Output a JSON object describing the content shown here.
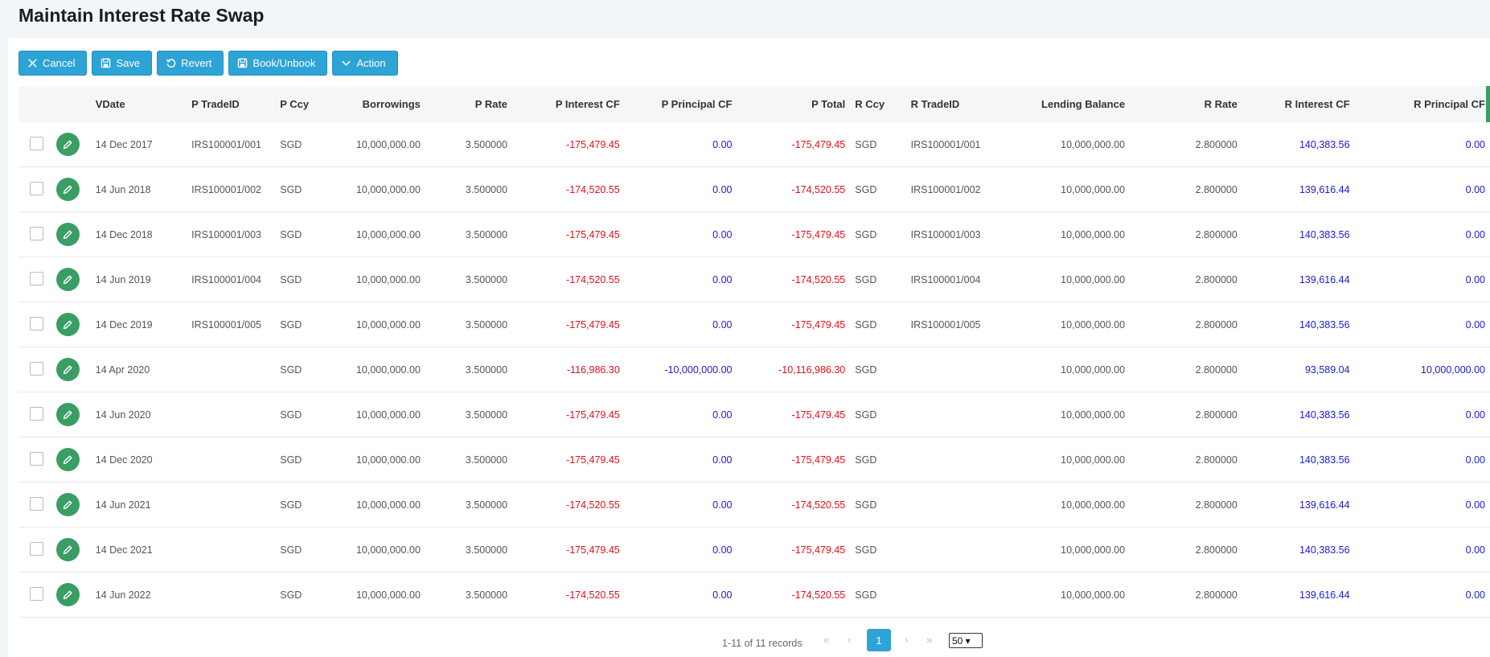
{
  "page": {
    "title": "Maintain Interest Rate Swap"
  },
  "toolbar": {
    "cancel": "Cancel",
    "save": "Save",
    "revert": "Revert",
    "book": "Book/Unbook",
    "action": "Action"
  },
  "columns": {
    "vdate": "VDate",
    "p_tradeid": "P TradeID",
    "p_ccy": "P Ccy",
    "borrowings": "Borrowings",
    "p_rate": "P Rate",
    "p_interest": "P Interest CF",
    "p_principal": "P Principal CF",
    "p_total": "P Total",
    "r_ccy": "R Ccy",
    "r_tradeid": "R TradeID",
    "lending": "Lending Balance",
    "r_rate": "R Rate",
    "r_interest": "R Interest CF",
    "r_principal": "R Principal CF"
  },
  "rows": [
    {
      "vdate": "14 Dec 2017",
      "p_tradeid": "IRS100001/001",
      "p_ccy": "SGD",
      "borrowings": "10,000,000.00",
      "p_rate": "3.500000",
      "p_interest": "-175,479.45",
      "p_principal": "0.00",
      "p_total": "-175,479.45",
      "r_ccy": "SGD",
      "r_tradeid": "IRS100001/001",
      "lending": "10,000,000.00",
      "r_rate": "2.800000",
      "r_interest": "140,383.56",
      "r_principal": "0.00"
    },
    {
      "vdate": "14 Jun 2018",
      "p_tradeid": "IRS100001/002",
      "p_ccy": "SGD",
      "borrowings": "10,000,000.00",
      "p_rate": "3.500000",
      "p_interest": "-174,520.55",
      "p_principal": "0.00",
      "p_total": "-174,520.55",
      "r_ccy": "SGD",
      "r_tradeid": "IRS100001/002",
      "lending": "10,000,000.00",
      "r_rate": "2.800000",
      "r_interest": "139,616.44",
      "r_principal": "0.00"
    },
    {
      "vdate": "14 Dec 2018",
      "p_tradeid": "IRS100001/003",
      "p_ccy": "SGD",
      "borrowings": "10,000,000.00",
      "p_rate": "3.500000",
      "p_interest": "-175,479.45",
      "p_principal": "0.00",
      "p_total": "-175,479.45",
      "r_ccy": "SGD",
      "r_tradeid": "IRS100001/003",
      "lending": "10,000,000.00",
      "r_rate": "2.800000",
      "r_interest": "140,383.56",
      "r_principal": "0.00"
    },
    {
      "vdate": "14 Jun 2019",
      "p_tradeid": "IRS100001/004",
      "p_ccy": "SGD",
      "borrowings": "10,000,000.00",
      "p_rate": "3.500000",
      "p_interest": "-174,520.55",
      "p_principal": "0.00",
      "p_total": "-174,520.55",
      "r_ccy": "SGD",
      "r_tradeid": "IRS100001/004",
      "lending": "10,000,000.00",
      "r_rate": "2.800000",
      "r_interest": "139,616.44",
      "r_principal": "0.00"
    },
    {
      "vdate": "14 Dec 2019",
      "p_tradeid": "IRS100001/005",
      "p_ccy": "SGD",
      "borrowings": "10,000,000.00",
      "p_rate": "3.500000",
      "p_interest": "-175,479.45",
      "p_principal": "0.00",
      "p_total": "-175,479.45",
      "r_ccy": "SGD",
      "r_tradeid": "IRS100001/005",
      "lending": "10,000,000.00",
      "r_rate": "2.800000",
      "r_interest": "140,383.56",
      "r_principal": "0.00"
    },
    {
      "vdate": "14 Apr 2020",
      "p_tradeid": "",
      "p_ccy": "SGD",
      "borrowings": "10,000,000.00",
      "p_rate": "3.500000",
      "p_interest": "-116,986.30",
      "p_principal": "-10,000,000.00",
      "p_total": "-10,116,986.30",
      "r_ccy": "SGD",
      "r_tradeid": "",
      "lending": "10,000,000.00",
      "r_rate": "2.800000",
      "r_interest": "93,589.04",
      "r_principal": "10,000,000.00"
    },
    {
      "vdate": "14 Jun 2020",
      "p_tradeid": "",
      "p_ccy": "SGD",
      "borrowings": "10,000,000.00",
      "p_rate": "3.500000",
      "p_interest": "-175,479.45",
      "p_principal": "0.00",
      "p_total": "-175,479.45",
      "r_ccy": "SGD",
      "r_tradeid": "",
      "lending": "10,000,000.00",
      "r_rate": "2.800000",
      "r_interest": "140,383.56",
      "r_principal": "0.00"
    },
    {
      "vdate": "14 Dec 2020",
      "p_tradeid": "",
      "p_ccy": "SGD",
      "borrowings": "10,000,000.00",
      "p_rate": "3.500000",
      "p_interest": "-175,479.45",
      "p_principal": "0.00",
      "p_total": "-175,479.45",
      "r_ccy": "SGD",
      "r_tradeid": "",
      "lending": "10,000,000.00",
      "r_rate": "2.800000",
      "r_interest": "140,383.56",
      "r_principal": "0.00"
    },
    {
      "vdate": "14 Jun 2021",
      "p_tradeid": "",
      "p_ccy": "SGD",
      "borrowings": "10,000,000.00",
      "p_rate": "3.500000",
      "p_interest": "-174,520.55",
      "p_principal": "0.00",
      "p_total": "-174,520.55",
      "r_ccy": "SGD",
      "r_tradeid": "",
      "lending": "10,000,000.00",
      "r_rate": "2.800000",
      "r_interest": "139,616.44",
      "r_principal": "0.00"
    },
    {
      "vdate": "14 Dec 2021",
      "p_tradeid": "",
      "p_ccy": "SGD",
      "borrowings": "10,000,000.00",
      "p_rate": "3.500000",
      "p_interest": "-175,479.45",
      "p_principal": "0.00",
      "p_total": "-175,479.45",
      "r_ccy": "SGD",
      "r_tradeid": "",
      "lending": "10,000,000.00",
      "r_rate": "2.800000",
      "r_interest": "140,383.56",
      "r_principal": "0.00"
    },
    {
      "vdate": "14 Jun 2022",
      "p_tradeid": "",
      "p_ccy": "SGD",
      "borrowings": "10,000,000.00",
      "p_rate": "3.500000",
      "p_interest": "-174,520.55",
      "p_principal": "0.00",
      "p_total": "-174,520.55",
      "r_ccy": "SGD",
      "r_tradeid": "",
      "lending": "10,000,000.00",
      "r_rate": "2.800000",
      "r_interest": "139,616.44",
      "r_principal": "0.00"
    }
  ],
  "pager": {
    "info": "1-11 of 11 records",
    "first": "«",
    "prev": "‹",
    "current": "1",
    "next": "›",
    "last": "»",
    "page_size": "50 ▾"
  },
  "colors": {
    "accent": "#2ea3d6",
    "edit": "#3a9d63",
    "negative": "#e0101a",
    "positive": "#1a1ad6"
  }
}
